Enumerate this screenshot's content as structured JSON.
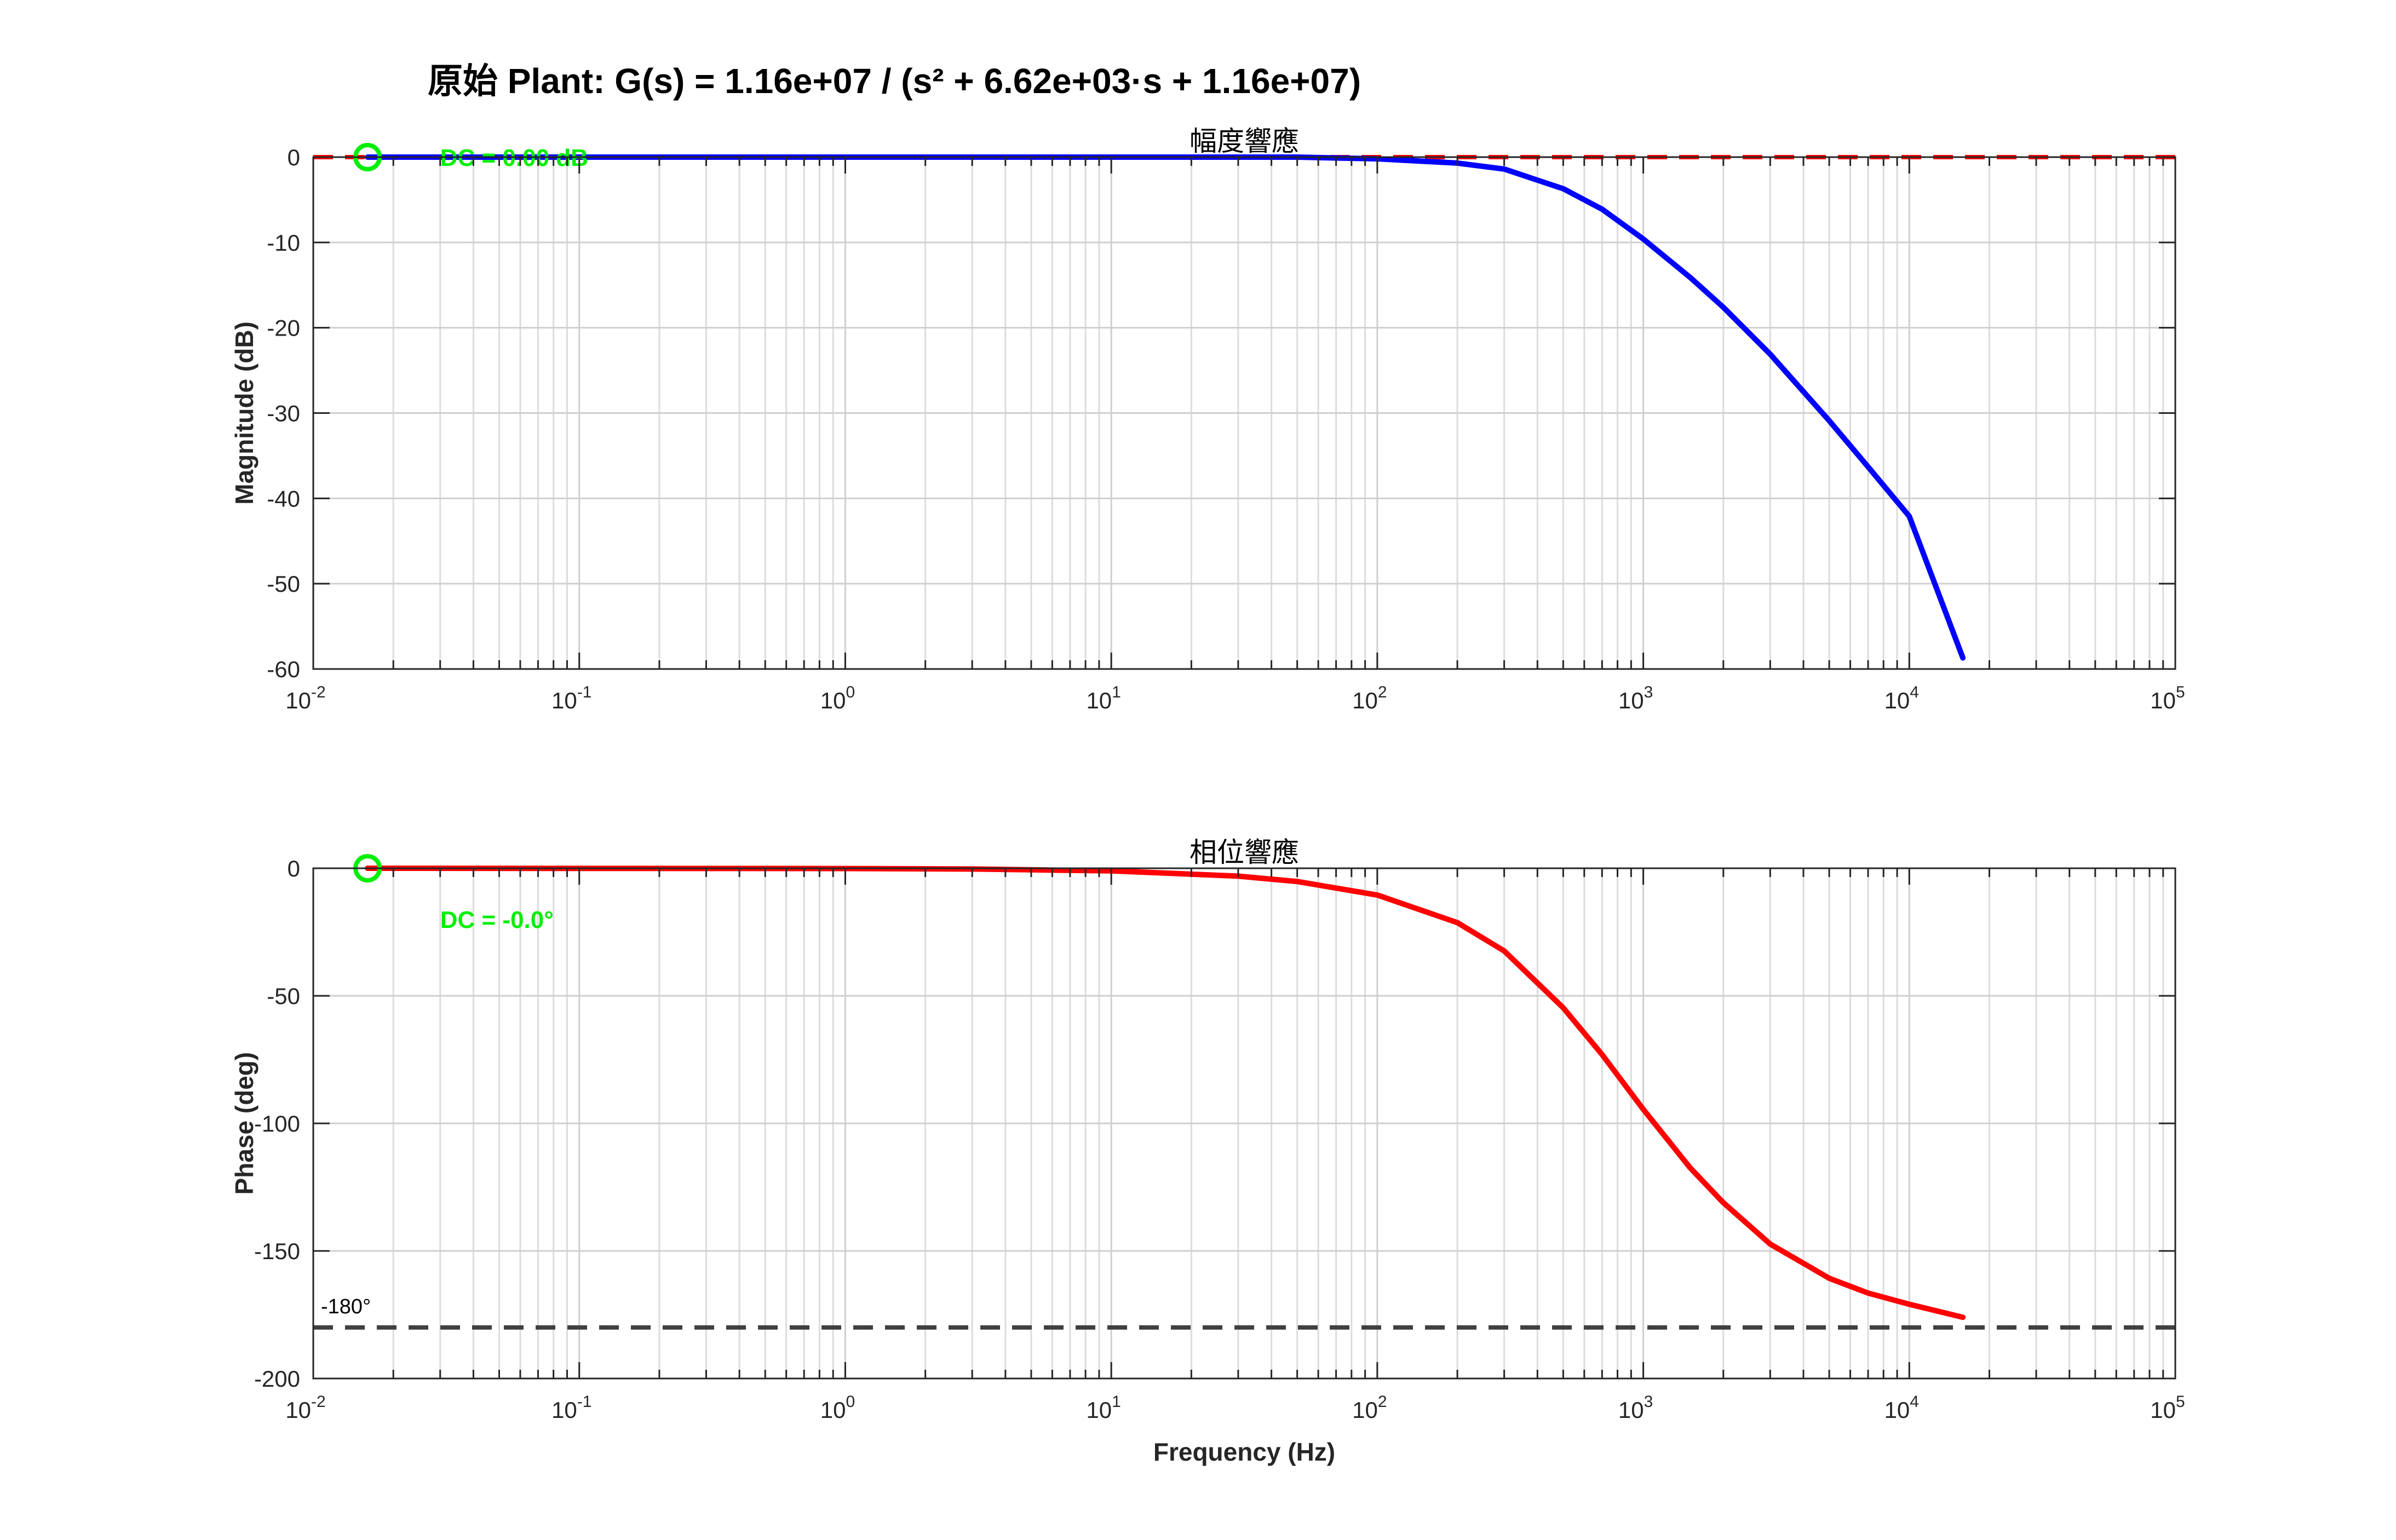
{
  "figure": {
    "title": "原始 Plant: G(s) = 1.16e+07 / (s² + 6.62e+03·s + 1.16e+07)"
  },
  "chart_data": [
    {
      "type": "line",
      "title": "幅度響應",
      "xlabel": "",
      "ylabel": "Magnitude (dB)",
      "xscale": "log",
      "xlim": [
        0.01,
        100000
      ],
      "ylim": [
        -60,
        0
      ],
      "yticks": [
        0,
        -10,
        -20,
        -30,
        -40,
        -50,
        -60
      ],
      "xticks": [
        0.01,
        0.1,
        1,
        10,
        100,
        1000,
        10000,
        100000
      ],
      "xtick_labels": [
        {
          "base": "10",
          "exp": "-2"
        },
        {
          "base": "10",
          "exp": "-1"
        },
        {
          "base": "10",
          "exp": "0"
        },
        {
          "base": "10",
          "exp": "1"
        },
        {
          "base": "10",
          "exp": "2"
        },
        {
          "base": "10",
          "exp": "3"
        },
        {
          "base": "10",
          "exp": "4"
        },
        {
          "base": "10",
          "exp": "5"
        }
      ],
      "grid": true,
      "series": [
        {
          "color": "#0000ff",
          "x": [
            0.016,
            1,
            10,
            50,
            100,
            200,
            300,
            500,
            700,
            1000,
            1500,
            2000,
            3000,
            5000,
            7000,
            10000,
            15900
          ],
          "y": [
            0,
            0,
            0,
            0,
            -0.2,
            -0.7,
            -1.4,
            -3.7,
            -6.1,
            -9.6,
            -14.1,
            -17.6,
            -23.1,
            -30.9,
            -36.3,
            -42.1,
            -58.7
          ]
        }
      ],
      "reference_line": {
        "y": 0,
        "color": "#ff0000",
        "style": "dashed"
      },
      "marker": {
        "x": 0.016,
        "y": 0,
        "color": "#00ee00",
        "shape": "circle"
      },
      "annotation": {
        "text": "DC = 0.00 dB",
        "x": 0.03,
        "y": 0,
        "color": "#00ee00"
      }
    },
    {
      "type": "line",
      "title": "相位響應",
      "xlabel": "Frequency (Hz)",
      "ylabel": "Phase (deg)",
      "xscale": "log",
      "xlim": [
        0.01,
        100000
      ],
      "ylim": [
        -200,
        0
      ],
      "yticks": [
        0,
        -50,
        -100,
        -150,
        -200
      ],
      "xticks": [
        0.01,
        0.1,
        1,
        10,
        100,
        1000,
        10000,
        100000
      ],
      "xtick_labels": [
        {
          "base": "10",
          "exp": "-2"
        },
        {
          "base": "10",
          "exp": "-1"
        },
        {
          "base": "10",
          "exp": "0"
        },
        {
          "base": "10",
          "exp": "1"
        },
        {
          "base": "10",
          "exp": "2"
        },
        {
          "base": "10",
          "exp": "3"
        },
        {
          "base": "10",
          "exp": "4"
        },
        {
          "base": "10",
          "exp": "5"
        }
      ],
      "grid": true,
      "series": [
        {
          "color": "#ff0000",
          "x": [
            0.016,
            1,
            3,
            10,
            30,
            50,
            100,
            200,
            300,
            500,
            700,
            1000,
            1500,
            2000,
            3000,
            5000,
            7000,
            10000,
            15900
          ],
          "y": [
            0,
            -0.1,
            -0.3,
            -1.0,
            -3.1,
            -5.2,
            -10.5,
            -21.3,
            -32.4,
            -54.7,
            -73.0,
            -94.5,
            -117.4,
            -131.1,
            -147.3,
            -160.7,
            -166.5,
            -170.9,
            -176.0
          ]
        }
      ],
      "reference_line": {
        "y": -180,
        "color": "#404040",
        "style": "dashed",
        "label": "-180°"
      },
      "marker": {
        "x": 0.016,
        "y": 0,
        "color": "#00ee00",
        "shape": "circle"
      },
      "annotation": {
        "text": "DC = -0.0°",
        "x": 0.03,
        "y": -20,
        "color": "#00ee00"
      }
    }
  ]
}
